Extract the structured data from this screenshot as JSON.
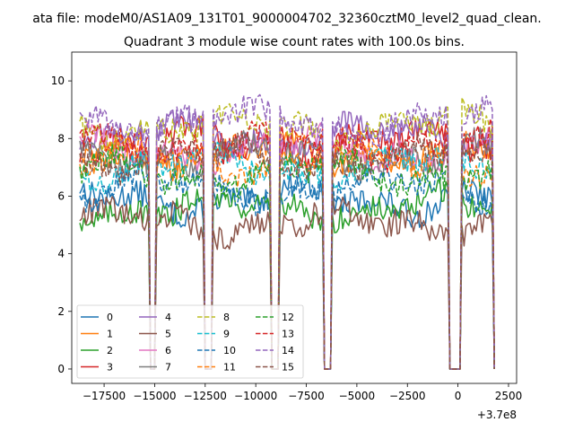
{
  "chart_data": {
    "type": "line",
    "suptitle": "ata file: modeM0/AS1A09_131T01_9000004702_32360cztM0_level2_quad_clean.",
    "title": "Quadrant 3 module wise count rates with 100.0s bins.",
    "xlabel": "",
    "ylabel": "",
    "x_offset_label": "+3.7e8",
    "xlim": [
      -19100,
      2900
    ],
    "ylim": [
      -0.5,
      11.0
    ],
    "x_ticks": [
      -17500,
      -15000,
      -12500,
      -10000,
      -7500,
      -5000,
      -2500,
      0,
      2500
    ],
    "x_tick_labels": [
      "−17500",
      "−15000",
      "−12500",
      "−10000",
      "−7500",
      "−5000",
      "−2500",
      "0",
      "2500"
    ],
    "y_ticks": [
      0,
      2,
      4,
      6,
      8,
      10
    ],
    "y_tick_labels": [
      "0",
      "2",
      "4",
      "6",
      "8",
      "10"
    ],
    "x_range": [
      -18700,
      1800
    ],
    "bin_size": 100,
    "gaps": [
      {
        "start": -15250,
        "end": -14950
      },
      {
        "start": -12550,
        "end": -12150
      },
      {
        "start": -9250,
        "end": -8850
      },
      {
        "start": -6650,
        "end": -6300
      },
      {
        "start": -450,
        "end": 150
      },
      {
        "start": 1750,
        "end": 1850
      }
    ],
    "gap_floor": 0,
    "legend_position": "lower-left",
    "series": [
      {
        "name": "0",
        "color": "#1f77b4",
        "dash": "solid",
        "level": 5.9
      },
      {
        "name": "1",
        "color": "#ff7f0e",
        "dash": "solid",
        "level": 7.5
      },
      {
        "name": "2",
        "color": "#2ca02c",
        "dash": "solid",
        "level": 5.6
      },
      {
        "name": "3",
        "color": "#d62728",
        "dash": "solid",
        "level": 7.9
      },
      {
        "name": "4",
        "color": "#9467bd",
        "dash": "solid",
        "level": 8.1
      },
      {
        "name": "5",
        "color": "#8c564b",
        "dash": "solid",
        "level": 5.1
      },
      {
        "name": "6",
        "color": "#e377c2",
        "dash": "solid",
        "level": 7.6
      },
      {
        "name": "7",
        "color": "#7f7f7f",
        "dash": "solid",
        "level": 7.4
      },
      {
        "name": "8",
        "color": "#bcbd22",
        "dash": "dashed",
        "level": 8.4
      },
      {
        "name": "9",
        "color": "#17becf",
        "dash": "dashed",
        "level": 7.0
      },
      {
        "name": "10",
        "color": "#1f77b4",
        "dash": "dashed",
        "level": 6.3
      },
      {
        "name": "11",
        "color": "#ff7f0e",
        "dash": "dashed",
        "level": 7.2
      },
      {
        "name": "12",
        "color": "#2ca02c",
        "dash": "dashed",
        "level": 6.8
      },
      {
        "name": "13",
        "color": "#d62728",
        "dash": "dashed",
        "level": 7.8
      },
      {
        "name": "14",
        "color": "#9467bd",
        "dash": "dashed",
        "level": 8.6
      },
      {
        "name": "15",
        "color": "#8c564b",
        "dash": "dashed",
        "level": 7.3
      }
    ]
  }
}
